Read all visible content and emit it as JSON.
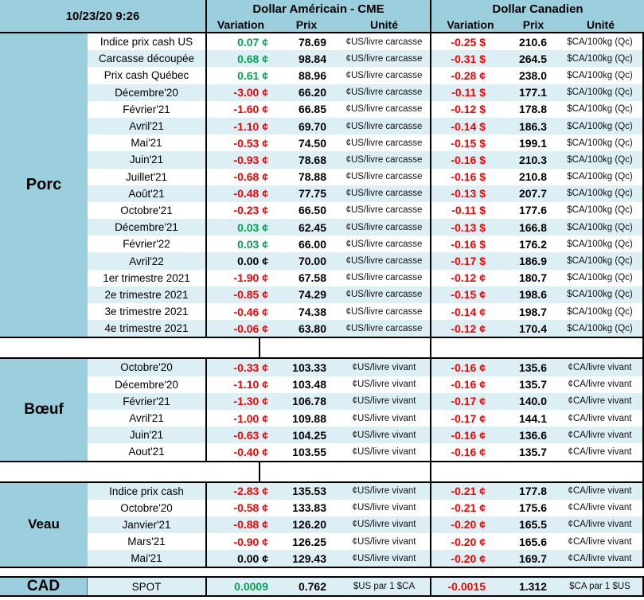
{
  "header": {
    "timestamp": "10/23/20 9:26",
    "us_group_label": "Dollar Américain - CME",
    "ca_group_label": "Dollar Canadien",
    "col_variation": "Variation",
    "col_prix": "Prix",
    "col_unite": "Unité"
  },
  "colors": {
    "header_blue": "#9CCFDE",
    "band_blue": "#DCEFF5",
    "positive_green": "#00A651",
    "negative_red": "#FE0000",
    "neutral_black": "#000000"
  },
  "sections": [
    {
      "name": "Porc",
      "rows": [
        {
          "label": "Indice prix cash US",
          "us_var": "0.07 ¢",
          "us_prix": "78.69",
          "us_unit": "¢US/livre carcasse",
          "ca_var": "-0.25 $",
          "ca_prix": "210.6",
          "ca_unit": "$CA/100kg (Qc)"
        },
        {
          "label": "Carcasse découpée",
          "us_var": "0.68 ¢",
          "us_prix": "98.84",
          "us_unit": "¢US/livre carcasse",
          "ca_var": "-0.31 $",
          "ca_prix": "264.5",
          "ca_unit": "$CA/100kg (Qc)"
        },
        {
          "label": "Prix cash Québec",
          "us_var": "0.61 ¢",
          "us_prix": "88.96",
          "us_unit": "¢US/livre carcasse",
          "ca_var": "-0.28 ¢",
          "ca_prix": "238.0",
          "ca_unit": "$CA/100kg (Qc)"
        },
        {
          "label": "Décembre'20",
          "us_var": "-3.00 ¢",
          "us_prix": "66.20",
          "us_unit": "¢US/livre carcasse",
          "ca_var": "-0.11 $",
          "ca_prix": "177.1",
          "ca_unit": "$CA/100kg (Qc)"
        },
        {
          "label": "Février'21",
          "us_var": "-1.60 ¢",
          "us_prix": "66.85",
          "us_unit": "¢US/livre carcasse",
          "ca_var": "-0.12 $",
          "ca_prix": "178.8",
          "ca_unit": "$CA/100kg (Qc)"
        },
        {
          "label": "Avril'21",
          "us_var": "-1.10 ¢",
          "us_prix": "69.70",
          "us_unit": "¢US/livre carcasse",
          "ca_var": "-0.14 $",
          "ca_prix": "186.3",
          "ca_unit": "$CA/100kg (Qc)"
        },
        {
          "label": "Mai'21",
          "us_var": "-0.53 ¢",
          "us_prix": "74.50",
          "us_unit": "¢US/livre carcasse",
          "ca_var": "-0.15 $",
          "ca_prix": "199.1",
          "ca_unit": "$CA/100kg (Qc)"
        },
        {
          "label": "Juin'21",
          "us_var": "-0.93 ¢",
          "us_prix": "78.68",
          "us_unit": "¢US/livre carcasse",
          "ca_var": "-0.16 $",
          "ca_prix": "210.3",
          "ca_unit": "$CA/100kg (Qc)"
        },
        {
          "label": "Juillet'21",
          "us_var": "-0.68 ¢",
          "us_prix": "78.88",
          "us_unit": "¢US/livre carcasse",
          "ca_var": "-0.16 $",
          "ca_prix": "210.8",
          "ca_unit": "$CA/100kg (Qc)"
        },
        {
          "label": "Août'21",
          "us_var": "-0.48 ¢",
          "us_prix": "77.75",
          "us_unit": "¢US/livre carcasse",
          "ca_var": "-0.13 $",
          "ca_prix": "207.7",
          "ca_unit": "$CA/100kg (Qc)"
        },
        {
          "label": "Octobre'21",
          "us_var": "-0.23 ¢",
          "us_prix": "66.50",
          "us_unit": "¢US/livre carcasse",
          "ca_var": "-0.11 $",
          "ca_prix": "177.6",
          "ca_unit": "$CA/100kg (Qc)"
        },
        {
          "label": "Décembre'21",
          "us_var": "0.03 ¢",
          "us_prix": "62.45",
          "us_unit": "¢US/livre carcasse",
          "ca_var": "-0.13 $",
          "ca_prix": "166.8",
          "ca_unit": "$CA/100kg (Qc)"
        },
        {
          "label": "Février'22",
          "us_var": "0.03 ¢",
          "us_prix": "66.00",
          "us_unit": "¢US/livre carcasse",
          "ca_var": "-0.16 $",
          "ca_prix": "176.2",
          "ca_unit": "$CA/100kg (Qc)"
        },
        {
          "label": "Avril'22",
          "us_var": "0.00 ¢",
          "us_prix": "70.00",
          "us_unit": "¢US/livre carcasse",
          "ca_var": "-0.17 $",
          "ca_prix": "186.9",
          "ca_unit": "$CA/100kg (Qc)"
        },
        {
          "label": "1er trimestre 2021",
          "us_var": "-1.90 ¢",
          "us_prix": "67.58",
          "us_unit": "¢US/livre carcasse",
          "ca_var": "-0.12 ¢",
          "ca_prix": "180.7",
          "ca_unit": "$CA/100kg (Qc)"
        },
        {
          "label": "2e trimestre 2021",
          "us_var": "-0.85 ¢",
          "us_prix": "74.29",
          "us_unit": "¢US/livre carcasse",
          "ca_var": "-0.15 ¢",
          "ca_prix": "198.6",
          "ca_unit": "$CA/100kg (Qc)"
        },
        {
          "label": "3e trimestre 2021",
          "us_var": "-0.46 ¢",
          "us_prix": "74.38",
          "us_unit": "¢US/livre carcasse",
          "ca_var": "-0.14 ¢",
          "ca_prix": "198.7",
          "ca_unit": "$CA/100kg (Qc)"
        },
        {
          "label": "4e trimestre 2021",
          "us_var": "-0.06 ¢",
          "us_prix": "63.80",
          "us_unit": "¢US/livre carcasse",
          "ca_var": "-0.12 ¢",
          "ca_prix": "170.4",
          "ca_unit": "$CA/100kg (Qc)"
        }
      ]
    },
    {
      "name": "Bœuf",
      "rows": [
        {
          "label": "Octobre'20",
          "us_var": "-0.33 ¢",
          "us_prix": "103.33",
          "us_unit": "¢US/livre vivant",
          "ca_var": "-0.16 ¢",
          "ca_prix": "135.6",
          "ca_unit": "¢CA/livre vivant"
        },
        {
          "label": "Décembre'20",
          "us_var": "-1.10 ¢",
          "us_prix": "103.48",
          "us_unit": "¢US/livre vivant",
          "ca_var": "-0.16 ¢",
          "ca_prix": "135.7",
          "ca_unit": "¢CA/livre vivant"
        },
        {
          "label": "Février'21",
          "us_var": "-1.30 ¢",
          "us_prix": "106.78",
          "us_unit": "¢US/livre vivant",
          "ca_var": "-0.17 ¢",
          "ca_prix": "140.0",
          "ca_unit": "¢CA/livre vivant"
        },
        {
          "label": "Avril'21",
          "us_var": "-1.00 ¢",
          "us_prix": "109.88",
          "us_unit": "¢US/livre vivant",
          "ca_var": "-0.17 ¢",
          "ca_prix": "144.1",
          "ca_unit": "¢CA/livre vivant"
        },
        {
          "label": "Juin'21",
          "us_var": "-0.63 ¢",
          "us_prix": "104.25",
          "us_unit": "¢US/livre vivant",
          "ca_var": "-0.16 ¢",
          "ca_prix": "136.6",
          "ca_unit": "¢CA/livre vivant"
        },
        {
          "label": "Aout'21",
          "us_var": "-0.40 ¢",
          "us_prix": "103.55",
          "us_unit": "¢US/livre vivant",
          "ca_var": "-0.16 ¢",
          "ca_prix": "135.7",
          "ca_unit": "¢CA/livre vivant"
        }
      ]
    },
    {
      "name": "Veau",
      "rows": [
        {
          "label": "Indice prix cash",
          "us_var": "-2.83 ¢",
          "us_prix": "135.53",
          "us_unit": "¢US/livre vivant",
          "ca_var": "-0.21 ¢",
          "ca_prix": "177.8",
          "ca_unit": "¢CA/livre vivant"
        },
        {
          "label": "Octobre'20",
          "us_var": "-0.58 ¢",
          "us_prix": "133.83",
          "us_unit": "¢US/livre vivant",
          "ca_var": "-0.21 ¢",
          "ca_prix": "175.6",
          "ca_unit": "¢CA/livre vivant"
        },
        {
          "label": "Janvier'21",
          "us_var": "-0.88 ¢",
          "us_prix": "126.20",
          "us_unit": "¢US/livre vivant",
          "ca_var": "-0.20 ¢",
          "ca_prix": "165.5",
          "ca_unit": "¢CA/livre vivant"
        },
        {
          "label": "Mars'21",
          "us_var": "-0.90 ¢",
          "us_prix": "126.25",
          "us_unit": "¢US/livre vivant",
          "ca_var": "-0.20 ¢",
          "ca_prix": "165.6",
          "ca_unit": "¢CA/livre vivant"
        },
        {
          "label": "Mai'21",
          "us_var": "0.00 ¢",
          "us_prix": "129.43",
          "us_unit": "¢US/livre vivant",
          "ca_var": "-0.20 ¢",
          "ca_prix": "169.7",
          "ca_unit": "¢CA/livre vivant"
        }
      ]
    },
    {
      "name": "CAD",
      "rows": [
        {
          "label": "SPOT",
          "us_var": "0.0009",
          "us_prix": "0.762",
          "us_unit": "$US par 1 $CA",
          "ca_var": "-0.0015",
          "ca_prix": "1.312",
          "ca_unit": "$CA par 1 $US"
        }
      ]
    }
  ]
}
